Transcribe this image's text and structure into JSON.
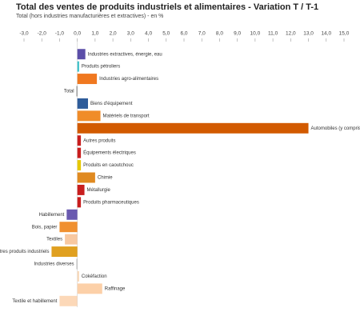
{
  "chart_data": {
    "type": "hbar",
    "title": "Total des ventes de produits industriels et alimentaires - Variation T / T-1",
    "subtitle": "Total (hors industries manufacturières et extractives) - en %",
    "categories": [
      "Industries extractives, énergie, eau",
      "Produits pétroliers",
      "Industries agro-alimentaires",
      "Total",
      "Biens d'équipement",
      "Matériels de transport",
      "Automobiles (y compris équipementiers)",
      "Autres produits",
      "Équipements électriques",
      "Produits en caoutchouc",
      "Chimie",
      "Métallurgie",
      "Produits pharmaceutiques",
      "Habillement",
      "Bois, papier",
      "Textiles",
      "Autres produits industriels",
      "Industries diverses",
      "Cokéfaction",
      "Raffinage",
      "Textile et habillement"
    ],
    "values": [
      0.45,
      0.1,
      1.1,
      -0.05,
      0.6,
      1.3,
      13.0,
      0.2,
      0.2,
      0.2,
      1.0,
      0.4,
      0.2,
      -0.6,
      -1.0,
      -0.7,
      -1.45,
      -0.05,
      0.1,
      1.4,
      -1.0
    ],
    "colors": [
      "#5b4ea8",
      "#3cc0c8",
      "#f07820",
      "#888888",
      "#2e5c9a",
      "#f08c28",
      "#d25a00",
      "#c81e1e",
      "#c81e1e",
      "#e6c800",
      "#e08a20",
      "#c81e1e",
      "#c81e1e",
      "#6a5ab0",
      "#f09030",
      "#f8c8a0",
      "#e0a020",
      "#bbbbbb",
      "#f8d8b8",
      "#fcd0a8",
      "#fcd8b8"
    ],
    "xlim": [
      -3,
      15
    ],
    "xticks": [
      {
        "value": -3,
        "label": "-3,0"
      },
      {
        "value": -2,
        "label": "-2,0"
      },
      {
        "value": -1,
        "label": "-1,0"
      },
      {
        "value": 0,
        "label": "0,0"
      },
      {
        "value": 1,
        "label": "1,0"
      },
      {
        "value": 2,
        "label": "2,0"
      },
      {
        "value": 3,
        "label": "3,0"
      },
      {
        "value": 4,
        "label": "4,0"
      },
      {
        "value": 5,
        "label": "5,0"
      },
      {
        "value": 6,
        "label": "6,0"
      },
      {
        "value": 7,
        "label": "7,0"
      },
      {
        "value": 8,
        "label": "8,0"
      },
      {
        "value": 9,
        "label": "9,0"
      },
      {
        "value": 10,
        "label": "10,0"
      },
      {
        "value": 11,
        "label": "11,0"
      },
      {
        "value": 12,
        "label": "12,0"
      },
      {
        "value": 13,
        "label": "13,0"
      },
      {
        "value": 14,
        "label": "14,0"
      },
      {
        "value": 15,
        "label": "15,0"
      }
    ]
  }
}
